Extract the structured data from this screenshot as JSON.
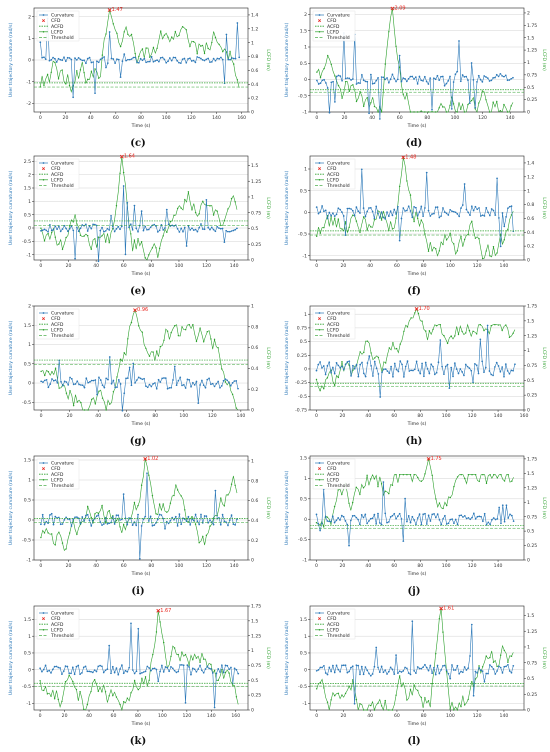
{
  "colors": {
    "curvature": "#2b78b8",
    "cfd": "#e8261f",
    "green": "#2ca02c",
    "grid": "#c8c8c8"
  },
  "labels": {
    "legend": [
      "Curvature",
      "CFD",
      "ACFD",
      "LCFD",
      "Threshold"
    ],
    "xlabel": "Time (s)",
    "ylabel_left": "User trajectory curvature (rad/s)",
    "ylabel_right": "LCFD (m)"
  },
  "chart_data": [
    {
      "type": "line",
      "caption": "(c)",
      "peak": 1.47,
      "peak_label": "1.47",
      "xlim": [
        -5,
        165
      ],
      "xticks": [
        0,
        20,
        40,
        60,
        80,
        100,
        120,
        140,
        160
      ],
      "y_left": {
        "lim": [
          -2.4,
          2.4
        ],
        "ticks": [
          -2,
          -1,
          0,
          1,
          2
        ]
      },
      "y_right": {
        "lim": [
          0,
          1.5
        ],
        "ticks": [
          0.0,
          0.2,
          0.4,
          0.6,
          0.8,
          1.0,
          1.2,
          1.4
        ]
      },
      "acfd": 0.42,
      "threshold": 0.36
    },
    {
      "type": "line",
      "caption": "(d)",
      "peak": 2.09,
      "peak_label": "2.09",
      "xlim": [
        -5,
        150
      ],
      "xticks": [
        0,
        20,
        40,
        60,
        80,
        100,
        120,
        140
      ],
      "y_left": {
        "lim": [
          -1.0,
          2.2
        ],
        "ticks": [
          -1.0,
          -0.5,
          0.0,
          0.5,
          1.0,
          1.5,
          2.0
        ]
      },
      "y_right": {
        "lim": [
          0,
          2.1
        ],
        "ticks": [
          0.0,
          0.25,
          0.5,
          0.75,
          1.0,
          1.25,
          1.5,
          1.75,
          2.0
        ]
      },
      "acfd": 0.45,
      "threshold": 0.4
    },
    {
      "type": "line",
      "caption": "(e)",
      "peak": 1.64,
      "peak_label": "1.64",
      "xlim": [
        -5,
        150
      ],
      "xticks": [
        0,
        20,
        40,
        60,
        80,
        100,
        120,
        140
      ],
      "y_left": {
        "lim": [
          -1.2,
          2.7
        ],
        "ticks": [
          -1.0,
          -0.5,
          0.0,
          0.5,
          1.0,
          1.5,
          2.0,
          2.5
        ]
      },
      "y_right": {
        "lim": [
          0,
          1.65
        ],
        "ticks": [
          0.0,
          0.25,
          0.5,
          0.75,
          1.0,
          1.25,
          1.5
        ]
      },
      "acfd": 0.62,
      "threshold": 0.55
    },
    {
      "type": "line",
      "caption": "(f)",
      "peak": 1.48,
      "peak_label": "1.48",
      "xlim": [
        -5,
        155
      ],
      "xticks": [
        0,
        20,
        40,
        60,
        80,
        100,
        120,
        140
      ],
      "y_left": {
        "lim": [
          -1.1,
          1.3
        ],
        "ticks": [
          -1.0,
          -0.5,
          0.0,
          0.5,
          1.0
        ]
      },
      "y_right": {
        "lim": [
          0,
          1.5
        ],
        "ticks": [
          0.0,
          0.2,
          0.4,
          0.6,
          0.8,
          1.0,
          1.2,
          1.4
        ]
      },
      "acfd": 0.42,
      "threshold": 0.36
    },
    {
      "type": "line",
      "caption": "(g)",
      "peak": 0.96,
      "peak_label": "0.96",
      "xlim": [
        -5,
        145
      ],
      "xticks": [
        0,
        20,
        40,
        60,
        80,
        100,
        120,
        140
      ],
      "y_left": {
        "lim": [
          -0.7,
          2.0
        ],
        "ticks": [
          -0.5,
          0.0,
          0.5,
          1.0,
          1.5,
          2.0
        ]
      },
      "y_right": {
        "lim": [
          0,
          1.0
        ],
        "ticks": [
          0.0,
          0.2,
          0.4,
          0.6,
          0.8,
          1.0
        ]
      },
      "acfd": 0.48,
      "threshold": 0.44
    },
    {
      "type": "line",
      "caption": "(h)",
      "peak": 1.7,
      "peak_label": "1.70",
      "xlim": [
        -5,
        160
      ],
      "xticks": [
        0,
        20,
        40,
        60,
        80,
        100,
        120,
        140,
        160
      ],
      "y_left": {
        "lim": [
          -0.75,
          1.15
        ],
        "ticks": [
          -0.75,
          -0.5,
          -0.25,
          0.0,
          0.25,
          0.5,
          0.75,
          1.0
        ]
      },
      "y_right": {
        "lim": [
          0,
          1.75
        ],
        "ticks": [
          0.0,
          0.25,
          0.5,
          0.75,
          1.0,
          1.25,
          1.5,
          1.75
        ]
      },
      "acfd": 0.45,
      "threshold": 0.4
    },
    {
      "type": "line",
      "caption": "(i)",
      "peak": 1.02,
      "peak_label": "1.02",
      "xlim": [
        -5,
        150
      ],
      "xticks": [
        0,
        20,
        40,
        60,
        80,
        100,
        120,
        140
      ],
      "y_left": {
        "lim": [
          -1.0,
          1.6
        ],
        "ticks": [
          -1.0,
          -0.5,
          0.0,
          0.5,
          1.0,
          1.5
        ]
      },
      "y_right": {
        "lim": [
          0,
          1.05
        ],
        "ticks": [
          0.0,
          0.2,
          0.4,
          0.6,
          0.8,
          1.0
        ]
      },
      "acfd": 0.42,
      "threshold": 0.38
    },
    {
      "type": "line",
      "caption": "(j)",
      "peak": 1.75,
      "peak_label": "1.75",
      "xlim": [
        -5,
        160
      ],
      "xticks": [
        0,
        20,
        40,
        60,
        80,
        100,
        120,
        140
      ],
      "y_left": {
        "lim": [
          -1.0,
          1.55
        ],
        "ticks": [
          -1.0,
          -0.5,
          0.0,
          0.5,
          1.0,
          1.5
        ]
      },
      "y_right": {
        "lim": [
          0,
          1.8
        ],
        "ticks": [
          0.0,
          0.25,
          0.5,
          0.75,
          1.0,
          1.25,
          1.5,
          1.75
        ]
      },
      "acfd": 0.6,
      "threshold": 0.55
    },
    {
      "type": "line",
      "caption": "(k)",
      "peak": 1.67,
      "peak_label": "1.67",
      "xlim": [
        -5,
        170
      ],
      "xticks": [
        0,
        20,
        40,
        60,
        80,
        100,
        120,
        140,
        160
      ],
      "y_left": {
        "lim": [
          -1.2,
          1.9
        ],
        "ticks": [
          -1.0,
          -0.5,
          0.0,
          0.5,
          1.0,
          1.5
        ]
      },
      "y_right": {
        "lim": [
          0,
          1.75
        ],
        "ticks": [
          0.0,
          0.25,
          0.5,
          0.75,
          1.0,
          1.25,
          1.5,
          1.75
        ]
      },
      "acfd": 0.45,
      "threshold": 0.4
    },
    {
      "type": "line",
      "caption": "(l)",
      "peak": 1.61,
      "peak_label": "1.61",
      "xlim": [
        -5,
        155
      ],
      "xticks": [
        0,
        20,
        40,
        60,
        80,
        100,
        120,
        140
      ],
      "y_left": {
        "lim": [
          -1.2,
          1.9
        ],
        "ticks": [
          -1.0,
          -0.5,
          0.0,
          0.5,
          1.0,
          1.5
        ]
      },
      "y_right": {
        "lim": [
          0,
          1.65
        ],
        "ticks": [
          0.0,
          0.25,
          0.5,
          0.75,
          1.0,
          1.25,
          1.5
        ]
      },
      "acfd": 0.42,
      "threshold": 0.38
    }
  ]
}
